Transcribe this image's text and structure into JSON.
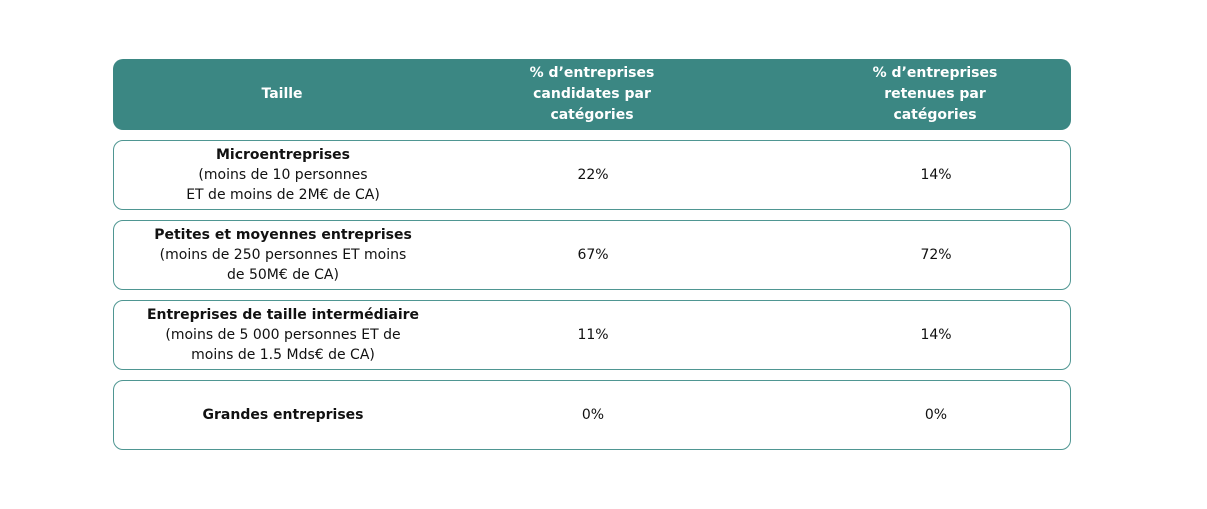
{
  "colors": {
    "header_bg": "#3b8783",
    "border": "#4f9692"
  },
  "header": {
    "col1": "Taille",
    "col2_lines": [
      "% d’entreprises",
      "candidates par",
      "catégories"
    ],
    "col3_lines": [
      "% d’entreprises",
      "retenues par",
      "catégories"
    ]
  },
  "rows": [
    {
      "title": "Microentreprises",
      "desc_lines": [
        "(moins de 10 personnes",
        "ET de moins de 2M€ de CA)"
      ],
      "candidates": "22%",
      "retenues": "14%"
    },
    {
      "title": "Petites et moyennes entreprises",
      "desc_lines": [
        "(moins de 250 personnes ET moins",
        "de 50M€ de CA)"
      ],
      "candidates": "67%",
      "retenues": "72%"
    },
    {
      "title": "Entreprises de taille intermédiaire",
      "desc_lines": [
        "(moins de 5 000 personnes ET de",
        "moins de 1.5 Mds€ de CA)"
      ],
      "candidates": "11%",
      "retenues": "14%"
    },
    {
      "title": "Grandes entreprises",
      "desc_lines": [],
      "candidates": "0%",
      "retenues": "0%"
    }
  ]
}
